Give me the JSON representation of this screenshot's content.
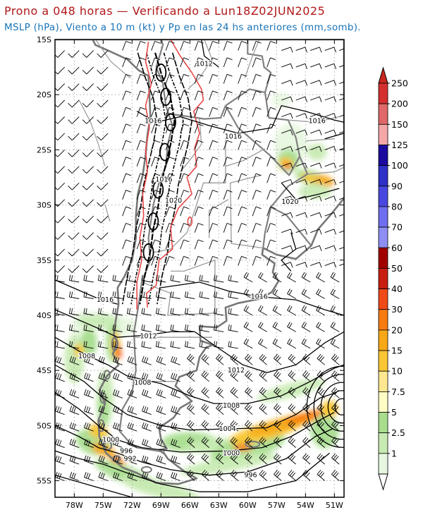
{
  "header": {
    "title": "Prono a 048 horas — Verificando a Lun18Z02JUN2025",
    "subtitle": "MSLP (hPa), Viento a 10 m (kt) y Pp en las 24 hs anteriores (mm,somb)."
  },
  "map": {
    "lat_labels": [
      "15S",
      "20S",
      "25S",
      "30S",
      "35S",
      "40S",
      "45S",
      "50S",
      "55S"
    ],
    "lon_labels": [
      "78W",
      "75W",
      "72W",
      "69W",
      "66W",
      "63W",
      "60W",
      "57W",
      "54W",
      "51W"
    ],
    "isobar_labels": [
      {
        "text": "1012",
        "lon": -64.5,
        "lat": -17.2
      },
      {
        "text": "1016",
        "lon": -69.8,
        "lat": -22.4
      },
      {
        "text": "1016",
        "lon": -61.5,
        "lat": -23.8
      },
      {
        "text": "1016",
        "lon": -52.8,
        "lat": -22.4
      },
      {
        "text": "1016",
        "lon": -68.7,
        "lat": -27.7
      },
      {
        "text": "1020",
        "lon": -67.7,
        "lat": -29.6
      },
      {
        "text": "1020",
        "lon": -55.6,
        "lat": -29.7
      },
      {
        "text": "1016",
        "lon": -74.8,
        "lat": -38.6
      },
      {
        "text": "1016",
        "lon": -58.8,
        "lat": -38.3
      },
      {
        "text": "1012",
        "lon": -70.3,
        "lat": -41.9
      },
      {
        "text": "1008",
        "lon": -76.7,
        "lat": -43.7
      },
      {
        "text": "1012",
        "lon": -61.2,
        "lat": -45.0
      },
      {
        "text": "1008",
        "lon": -70.9,
        "lat": -46.1
      },
      {
        "text": "1008",
        "lon": -61.7,
        "lat": -48.2
      },
      {
        "text": "1004",
        "lon": -62.1,
        "lat": -50.3
      },
      {
        "text": "1000",
        "lon": -74.2,
        "lat": -51.3
      },
      {
        "text": "996",
        "lon": -72.6,
        "lat": -52.3
      },
      {
        "text": "992",
        "lon": -72.2,
        "lat": -53.0
      },
      {
        "text": "1000",
        "lon": -61.7,
        "lat": -52.5
      },
      {
        "text": "996",
        "lon": -59.7,
        "lat": -54.5
      }
    ]
  },
  "legend": {
    "title": "",
    "labels": [
      "250",
      "200",
      "150",
      "125",
      "100",
      "90",
      "80",
      "70",
      "60",
      "50",
      "40",
      "30",
      "20",
      "15",
      "10",
      "7.5",
      "5",
      "2.5",
      "1"
    ],
    "colors": [
      "#d43030",
      "#e06868",
      "#f3a7a7",
      "#1a0a9e",
      "#2e30c8",
      "#4848e0",
      "#6e6eef",
      "#8e8ef5",
      "#a00000",
      "#c81e10",
      "#ef4a18",
      "#f77b10",
      "#f8a816",
      "#fac633",
      "#fde890",
      "#fffcc4",
      "#a8dd8e",
      "#c8ebb3",
      "#e7f7df"
    ],
    "top_arrow_color": "#c8281e"
  },
  "precip_areas": [
    {
      "lon": -74.0,
      "lat": -43.0,
      "mm": 40
    },
    {
      "lon": -73.5,
      "lat": -41.5,
      "mm": 30
    },
    {
      "lon": -76.5,
      "lat": -42.0,
      "mm": 15
    },
    {
      "lon": -74.5,
      "lat": -50.5,
      "mm": 15
    },
    {
      "lon": -55.5,
      "lat": -26.5,
      "mm": 40
    },
    {
      "lon": -53.5,
      "lat": -27.5,
      "mm": 20
    },
    {
      "lon": -56.0,
      "lat": -49.0,
      "mm": 15
    }
  ]
}
